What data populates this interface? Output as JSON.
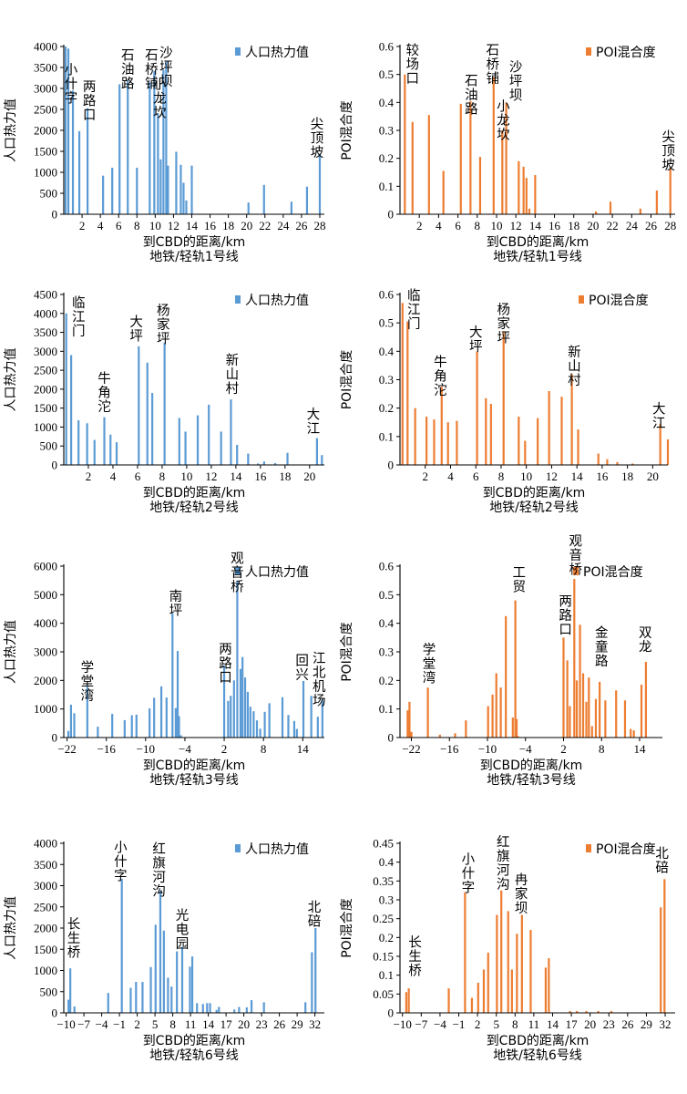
{
  "colors": {
    "pop": "#5b9bd5",
    "poi": "#ed7d31"
  },
  "chart_data": [
    {
      "type": "bar",
      "line": "地铁/轻轨1号线",
      "metric": "pop",
      "ylabel": "人口热力值",
      "xlabel": "到CBD的距离/km",
      "caption": "地铁/轻轨1号线",
      "legend": "人口热力值",
      "ylim": [
        0,
        4000
      ],
      "yticks": [
        0,
        500,
        1000,
        1500,
        2000,
        2500,
        3000,
        3500,
        4000
      ],
      "xlim": [
        0,
        28.5
      ],
      "xticks": [
        2,
        4,
        6,
        8,
        10,
        12,
        14,
        16,
        18,
        20,
        22,
        24,
        26,
        28
      ],
      "x": [
        0.2,
        0.5,
        1.0,
        1.7,
        2.6,
        4.3,
        5.3,
        6.1,
        7.0,
        8.0,
        9.4,
        9.9,
        10.3,
        10.6,
        10.9,
        11.2,
        11.4,
        12.3,
        12.8,
        13.1,
        13.4,
        14.0,
        20.2,
        21.9,
        24.9,
        26.6,
        28.0
      ],
      "values": [
        4000,
        3950,
        2950,
        1980,
        2530,
        920,
        1110,
        3100,
        3180,
        1110,
        3150,
        3420,
        2400,
        1310,
        3440,
        3660,
        1160,
        1490,
        1180,
        750,
        330,
        1160,
        280,
        700,
        300,
        660,
        1440
      ],
      "stations": [
        {
          "text": "小什字",
          "x": 0.8,
          "v": 3600
        },
        {
          "text": "两路口",
          "x": 2.8,
          "v": 3200
        },
        {
          "text": "石油路",
          "x": 7.0,
          "v": 3950
        },
        {
          "text": "石桥铺",
          "x": 9.6,
          "v": 3950
        },
        {
          "text": "沙坪坝",
          "x": 11.2,
          "v": 4000
        },
        {
          "text": "小龙坎",
          "x": 10.5,
          "v": 3250
        },
        {
          "text": "尖顶坡",
          "x": 27.7,
          "v": 2300
        }
      ]
    },
    {
      "type": "bar",
      "line": "地铁/轻轨1号线",
      "metric": "poi",
      "ylabel": "POI混合度",
      "xlabel": "到CBD的距离/km",
      "caption": "地铁/轻轨1号线",
      "legend": "POI混合度",
      "ylim": [
        0,
        0.6
      ],
      "yticks": [
        0,
        0.1,
        0.2,
        0.3,
        0.4,
        0.5,
        0.6
      ],
      "xlim": [
        0,
        28.5
      ],
      "xticks": [
        2,
        4,
        6,
        8,
        10,
        12,
        14,
        16,
        18,
        20,
        22,
        24,
        26,
        28
      ],
      "x": [
        0.5,
        1.3,
        3.0,
        4.5,
        6.3,
        7.3,
        8.3,
        9.7,
        10.6,
        11.0,
        12.3,
        12.8,
        13.1,
        13.4,
        14.0,
        20.3,
        21.8,
        24.9,
        26.6,
        28.0
      ],
      "values": [
        0.5,
        0.33,
        0.355,
        0.155,
        0.395,
        0.405,
        0.205,
        0.49,
        0.3,
        0.4,
        0.19,
        0.17,
        0.13,
        0.02,
        0.14,
        0.01,
        0.045,
        0.02,
        0.085,
        0.165
      ],
      "stations": [
        {
          "text": "较场口",
          "x": 1.3,
          "v": 0.61
        },
        {
          "text": "石油路",
          "x": 7.4,
          "v": 0.5
        },
        {
          "text": "石桥铺",
          "x": 9.6,
          "v": 0.61
        },
        {
          "text": "沙坪坝",
          "x": 12.0,
          "v": 0.55
        },
        {
          "text": "小龙坎",
          "x": 10.7,
          "v": 0.41
        },
        {
          "text": "尖顶坡",
          "x": 27.8,
          "v": 0.3
        }
      ]
    },
    {
      "type": "bar",
      "line": "地铁/轻轨2号线",
      "metric": "pop",
      "ylabel": "人口热力值",
      "xlabel": "到CBD的距离/km",
      "caption": "地铁/轻轨2号线",
      "legend": "人口热力值",
      "ylim": [
        0,
        4500
      ],
      "yticks": [
        0,
        500,
        1000,
        1500,
        2000,
        2500,
        3000,
        3500,
        4000,
        4500
      ],
      "xlim": [
        0,
        21.2
      ],
      "xticks": [
        2,
        4,
        6,
        8,
        10,
        12,
        14,
        16,
        18,
        20
      ],
      "x": [
        0.2,
        0.6,
        1.2,
        1.9,
        2.5,
        3.3,
        3.8,
        4.3,
        6.1,
        6.8,
        7.2,
        8.2,
        9.4,
        9.9,
        10.9,
        11.8,
        12.8,
        13.6,
        14.1,
        15.0,
        15.8,
        16.3,
        17.2,
        18.2,
        20.6,
        21.0
      ],
      "values": [
        4000,
        2900,
        1180,
        1100,
        660,
        1260,
        800,
        600,
        3130,
        2700,
        1900,
        3230,
        1240,
        880,
        1310,
        1590,
        880,
        1730,
        530,
        300,
        40,
        90,
        50,
        320,
        710,
        260
      ],
      "stations": [
        {
          "text": "临江门",
          "x": 1.2,
          "v": 4450
        },
        {
          "text": "牛角沱",
          "x": 3.3,
          "v": 2450
        },
        {
          "text": "大坪",
          "x": 5.9,
          "v": 3950
        },
        {
          "text": "杨家坪",
          "x": 8.1,
          "v": 4250
        },
        {
          "text": "新山村",
          "x": 13.7,
          "v": 2930
        },
        {
          "text": "大江",
          "x": 20.3,
          "v": 1500
        }
      ]
    },
    {
      "type": "bar",
      "line": "地铁/轻轨2号线",
      "metric": "poi",
      "ylabel": "POI混合度",
      "xlabel": "到CBD的距离/km",
      "caption": "地铁/轻轨2号线",
      "legend": "POI混合度",
      "ylim": [
        0,
        0.6
      ],
      "yticks": [
        0,
        0.1,
        0.2,
        0.3,
        0.4,
        0.5,
        0.6
      ],
      "xlim": [
        0,
        21.2
      ],
      "xticks": [
        2,
        4,
        6,
        8,
        10,
        12,
        14,
        16,
        18,
        20
      ],
      "x": [
        0.2,
        0.6,
        1.2,
        2.1,
        2.7,
        3.3,
        3.8,
        4.5,
        6.1,
        6.8,
        7.2,
        8.2,
        9.4,
        9.9,
        10.9,
        11.8,
        12.8,
        13.6,
        14.1,
        15.7,
        16.4,
        17.2,
        18.4,
        20.6,
        21.2
      ],
      "values": [
        0.57,
        0.505,
        0.2,
        0.17,
        0.16,
        0.275,
        0.15,
        0.155,
        0.4,
        0.235,
        0.215,
        0.47,
        0.17,
        0.085,
        0.165,
        0.26,
        0.24,
        0.32,
        0.125,
        0.04,
        0.02,
        0.01,
        0.005,
        0.145,
        0.09
      ],
      "stations": [
        {
          "text": "临江门",
          "x": 1.1,
          "v": 0.62
        },
        {
          "text": "牛角沱",
          "x": 3.2,
          "v": 0.385
        },
        {
          "text": "大坪",
          "x": 6.0,
          "v": 0.49
        },
        {
          "text": "杨家坪",
          "x": 8.2,
          "v": 0.57
        },
        {
          "text": "新山村",
          "x": 13.8,
          "v": 0.42
        },
        {
          "text": "大江",
          "x": 20.5,
          "v": 0.22
        }
      ]
    },
    {
      "type": "bar",
      "line": "地铁/轻轨3号线",
      "metric": "pop",
      "ylabel": "人口热力值",
      "xlabel": "到CBD的距离/km",
      "caption": "地铁/轻轨3号线",
      "legend": "人口热力值",
      "ylim": [
        0,
        6000
      ],
      "yticks": [
        0,
        1000,
        2000,
        3000,
        4000,
        5000,
        6000
      ],
      "xlim": [
        -22.5,
        17.3
      ],
      "xticks": [
        -22,
        -16,
        -10,
        -4,
        2,
        8,
        14
      ],
      "x": [
        -21.8,
        -21.4,
        -20.9,
        -18.9,
        -17.3,
        -15.1,
        -13.2,
        -12.1,
        -11.4,
        -9.4,
        -8.7,
        -7.6,
        -6.8,
        -5.9,
        -5.4,
        -5.1,
        -4.9,
        -4.6,
        2.0,
        2.6,
        3.0,
        3.5,
        4.0,
        4.5,
        4.8,
        5.2,
        5.6,
        6.0,
        6.5,
        7.0,
        7.5,
        8.2,
        8.9,
        10.9,
        11.8,
        12.7,
        13.1,
        14.1,
        15.3,
        16.3,
        17.0
      ],
      "values": [
        230,
        1150,
        850,
        1780,
        380,
        830,
        610,
        780,
        800,
        1020,
        1390,
        1790,
        1400,
        4350,
        1030,
        3030,
        750,
        80,
        2520,
        1280,
        1460,
        2000,
        5490,
        2400,
        2820,
        2100,
        1600,
        1080,
        920,
        600,
        310,
        900,
        1200,
        1410,
        790,
        580,
        300,
        1980,
        1460,
        730,
        1320
      ],
      "stations": [
        {
          "text": "学堂湾",
          "x": -18.9,
          "v": 2680
        },
        {
          "text": "南坪",
          "x": -5.4,
          "v": 5170
        },
        {
          "text": "两路口",
          "x": 2.2,
          "v": 3320
        },
        {
          "text": "观音桥",
          "x": 4.0,
          "v": 6500
        },
        {
          "text": "回兴",
          "x": 13.9,
          "v": 2920
        },
        {
          "text": "江北机场",
          "x": 16.5,
          "v": 3000
        }
      ]
    },
    {
      "type": "bar",
      "line": "地铁/轻轨3号线",
      "metric": "poi",
      "ylabel": "POI混合度",
      "xlabel": "到CBD的距离/km",
      "caption": "地铁/轻轨3号线",
      "legend": "POI混合度",
      "ylim": [
        0,
        0.6
      ],
      "yticks": [
        0,
        0.1,
        0.2,
        0.3,
        0.4,
        0.5,
        0.6
      ],
      "xlim": [
        -23.8,
        17.6
      ],
      "xticks": [
        -22,
        -16,
        -10,
        -4,
        2,
        8,
        14
      ],
      "x": [
        -22.6,
        -22.3,
        -22.0,
        -19.4,
        -17.5,
        -15.1,
        -13.4,
        -9.9,
        -9.2,
        -8.6,
        -7.9,
        -7.1,
        -6.0,
        -5.6,
        -5.4,
        -5.2,
        2.0,
        2.6,
        3.0,
        3.7,
        4.1,
        4.6,
        5.1,
        5.6,
        6.0,
        6.5,
        7.1,
        7.7,
        8.6,
        10.3,
        11.7,
        12.6,
        13.1,
        14.3,
        15.0
      ],
      "values": [
        0.095,
        0.125,
        0.02,
        0.175,
        0.01,
        0.015,
        0.06,
        0.11,
        0.15,
        0.225,
        0.175,
        0.425,
        0.07,
        0.48,
        0.065,
        0.005,
        0.35,
        0.27,
        0.11,
        0.555,
        0.2,
        0.395,
        0.225,
        0.125,
        0.21,
        0.04,
        0.135,
        0.195,
        0.13,
        0.165,
        0.13,
        0.03,
        0.025,
        0.185,
        0.265
      ],
      "stations": [
        {
          "text": "学堂湾",
          "x": -19.2,
          "v": 0.33
        },
        {
          "text": "工贸",
          "x": -5.0,
          "v": 0.6
        },
        {
          "text": "两路口",
          "x": 2.3,
          "v": 0.5
        },
        {
          "text": "观音桥",
          "x": 3.9,
          "v": 0.71
        },
        {
          "text": "金童路",
          "x": 8.0,
          "v": 0.39
        },
        {
          "text": "双龙",
          "x": 14.9,
          "v": 0.39
        }
      ]
    },
    {
      "type": "bar",
      "line": "地铁/轻轨6号线",
      "metric": "pop",
      "ylabel": "人口热力值",
      "xlabel": "到CBD的距离/km",
      "caption": "地铁/轻轨6号线",
      "legend": "人口热力值",
      "ylim": [
        0,
        4000
      ],
      "yticks": [
        0,
        500,
        1000,
        1500,
        2000,
        2500,
        3000,
        3500,
        4000
      ],
      "xlim": [
        -10.4,
        33.6
      ],
      "xticks": [
        -10,
        -7,
        -4,
        -1,
        2,
        5,
        8,
        11,
        14,
        17,
        20,
        23,
        26,
        29,
        32
      ],
      "x": [
        -9.6,
        -9.3,
        -8.6,
        -2.9,
        -0.6,
        0.9,
        1.8,
        2.9,
        4.3,
        5.1,
        5.9,
        6.5,
        7.2,
        7.8,
        8.7,
        9.6,
        10.9,
        11.3,
        12.1,
        13.1,
        13.8,
        14.3,
        15.4,
        15.8,
        18.4,
        19.2,
        20.5,
        21.3,
        23.4,
        30.4,
        31.5,
        32.1
      ],
      "values": [
        310,
        1050,
        150,
        470,
        3160,
        590,
        730,
        730,
        1080,
        2080,
        2880,
        1940,
        830,
        620,
        1450,
        1560,
        1090,
        1330,
        230,
        210,
        230,
        230,
        70,
        140,
        80,
        140,
        130,
        300,
        250,
        250,
        1430,
        2000
      ],
      "stations": [
        {
          "text": "长生桥",
          "x": -8.7,
          "v": 2250
        },
        {
          "text": "小什字",
          "x": -0.8,
          "v": 4050
        },
        {
          "text": "红旗河沟",
          "x": 5.7,
          "v": 4020
        },
        {
          "text": "光电园",
          "x": 9.6,
          "v": 2450
        },
        {
          "text": "北碚",
          "x": 31.9,
          "v": 2650
        }
      ]
    },
    {
      "type": "bar",
      "line": "地铁/轻轨6号线",
      "metric": "poi",
      "ylabel": "POI混合度",
      "xlabel": "到CBD的距离/km",
      "caption": "地铁/轻轨6号线",
      "legend": "POI混合度",
      "ylim": [
        0,
        0.45
      ],
      "yticks": [
        0,
        0.05,
        0.1,
        0.15,
        0.2,
        0.25,
        0.3,
        0.35,
        0.4,
        0.45
      ],
      "xlim": [
        -10.4,
        33.6
      ],
      "xticks": [
        -10,
        -7,
        -4,
        -1,
        2,
        5,
        8,
        11,
        14,
        17,
        20,
        23,
        26,
        29,
        32
      ],
      "x": [
        -9.4,
        -9.0,
        -2.6,
        0.0,
        1.1,
        2.1,
        3.0,
        3.7,
        5.1,
        5.8,
        6.9,
        7.5,
        8.3,
        9.1,
        10.5,
        12.9,
        13.4,
        16.8,
        17.9,
        19.4,
        21.3,
        23.4,
        31.3,
        31.9
      ],
      "values": [
        0.055,
        0.065,
        0.065,
        0.32,
        0.04,
        0.08,
        0.115,
        0.16,
        0.26,
        0.325,
        0.27,
        0.115,
        0.21,
        0.26,
        0.22,
        0.12,
        0.145,
        0.005,
        0.005,
        0.005,
        0.005,
        0.005,
        0.28,
        0.355
      ],
      "stations": [
        {
          "text": "长生桥",
          "x": -8.0,
          "v": 0.205
        },
        {
          "text": "小什字",
          "x": 0.5,
          "v": 0.425
        },
        {
          "text": "红旗河沟",
          "x": 6.1,
          "v": 0.47
        },
        {
          "text": "冉家坝",
          "x": 9.0,
          "v": 0.37
        },
        {
          "text": "北碚",
          "x": 31.5,
          "v": 0.44
        }
      ]
    }
  ]
}
